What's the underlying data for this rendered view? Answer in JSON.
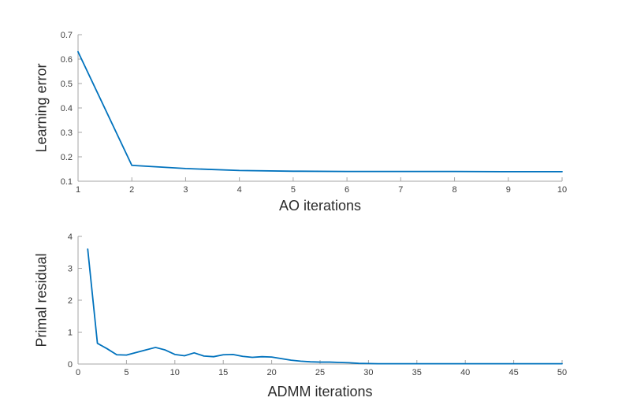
{
  "colors": {
    "background": "#ffffff",
    "line": "#0072BD",
    "axis": "#a6a6a6",
    "tick_label": "#404040",
    "axis_label": "#2b2b2b"
  },
  "chart_data": [
    {
      "type": "line",
      "title": "",
      "xlabel": "AO iterations",
      "ylabel": "Learning error",
      "xlim": [
        1,
        10
      ],
      "ylim": [
        0.1,
        0.7
      ],
      "xticks": [
        1,
        2,
        3,
        4,
        5,
        6,
        7,
        8,
        9,
        10
      ],
      "xticklabels": [
        "1",
        "2",
        "3",
        "4",
        "5",
        "6",
        "7",
        "8",
        "9",
        "10"
      ],
      "yticks": [
        0.1,
        0.2,
        0.3,
        0.4,
        0.5,
        0.6,
        0.7
      ],
      "yticklabels": [
        "0.1",
        "0.2",
        "0.3",
        "0.4",
        "0.5",
        "0.6",
        "0.7"
      ],
      "grid": false,
      "legend": null,
      "x": [
        1,
        2,
        3,
        4,
        5,
        6,
        7,
        8,
        9,
        10
      ],
      "y": [
        0.63,
        0.165,
        0.152,
        0.144,
        0.141,
        0.14,
        0.14,
        0.14,
        0.139,
        0.139
      ]
    },
    {
      "type": "line",
      "title": "",
      "xlabel": "ADMM iterations",
      "ylabel": "Primal residual",
      "xlim": [
        0,
        50
      ],
      "ylim": [
        0,
        4
      ],
      "xticks": [
        0,
        5,
        10,
        15,
        20,
        25,
        30,
        35,
        40,
        45,
        50
      ],
      "xticklabels": [
        "0",
        "5",
        "10",
        "15",
        "20",
        "25",
        "30",
        "35",
        "40",
        "45",
        "50"
      ],
      "yticks": [
        0,
        1,
        2,
        3,
        4
      ],
      "yticklabels": [
        "0",
        "1",
        "2",
        "3",
        "4"
      ],
      "grid": false,
      "legend": null,
      "x": [
        1,
        2,
        3,
        4,
        5,
        6,
        7,
        8,
        9,
        10,
        11,
        12,
        13,
        14,
        15,
        16,
        17,
        18,
        19,
        20,
        21,
        22,
        23,
        24,
        25,
        26,
        27,
        28,
        29,
        30,
        31,
        32,
        33,
        34,
        35,
        36,
        37,
        38,
        39,
        40,
        41,
        42,
        43,
        44,
        45,
        46,
        47,
        48,
        49,
        50
      ],
      "y": [
        3.6,
        0.65,
        0.48,
        0.29,
        0.28,
        0.36,
        0.44,
        0.52,
        0.44,
        0.3,
        0.26,
        0.35,
        0.25,
        0.23,
        0.29,
        0.3,
        0.24,
        0.21,
        0.23,
        0.22,
        0.17,
        0.12,
        0.09,
        0.07,
        0.06,
        0.06,
        0.05,
        0.04,
        0.02,
        0.015,
        0.01,
        0.01,
        0.01,
        0.01,
        0.01,
        0.01,
        0.01,
        0.01,
        0.01,
        0.01,
        0.01,
        0.01,
        0.01,
        0.01,
        0.01,
        0.01,
        0.01,
        0.01,
        0.01,
        0.01
      ]
    }
  ]
}
